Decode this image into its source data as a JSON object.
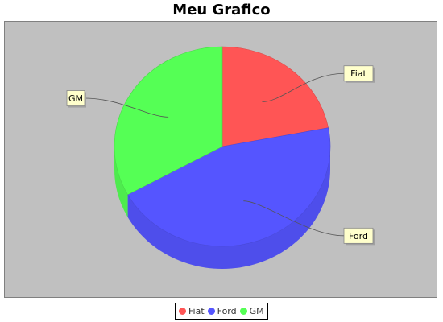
{
  "chart_data": {
    "type": "pie",
    "title": "Meu Grafico",
    "categories": [
      "Fiat",
      "Ford",
      "GM"
    ],
    "values": [
      22,
      45,
      33
    ],
    "colors": [
      "#ff5555",
      "#5555ff",
      "#55ff55"
    ],
    "legend_position": "bottom",
    "style": "3d"
  }
}
